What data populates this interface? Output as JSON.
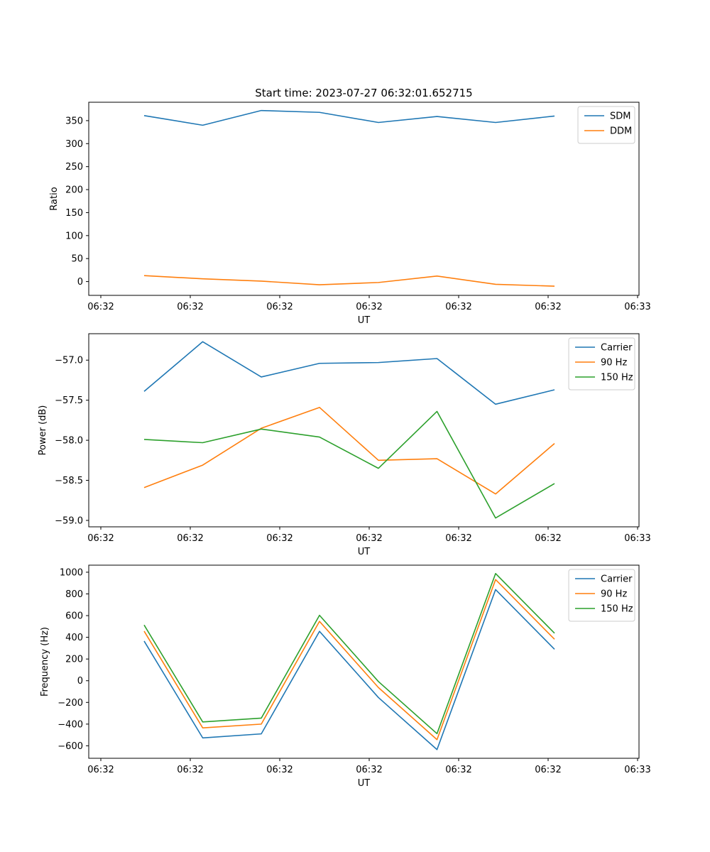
{
  "figure": {
    "title": "Start time: 2023-07-27 06:32:01.652715"
  },
  "chart_data": [
    {
      "type": "line",
      "title": "Start time: 2023-07-27 06:32:01.652715",
      "xlabel": "UT",
      "ylabel": "Ratio",
      "ylim": [
        -30,
        390
      ],
      "yticks": [
        0,
        50,
        100,
        150,
        200,
        250,
        300,
        350
      ],
      "x_tick_labels": [
        "06:32",
        "06:32",
        "06:32",
        "06:32",
        "06:32",
        "06:32",
        "06:33"
      ],
      "legend": "top-right",
      "series": [
        {
          "name": "SDM",
          "color": "#1f77b4",
          "values": [
            361,
            340,
            372,
            368,
            346,
            359,
            346,
            360
          ]
        },
        {
          "name": "DDM",
          "color": "#ff7f0e",
          "values": [
            13,
            6,
            1,
            -7,
            -2,
            12,
            -6,
            -10
          ]
        }
      ]
    },
    {
      "type": "line",
      "xlabel": "UT",
      "ylabel": "Power (dB)",
      "ylim": [
        -59.08,
        -56.67
      ],
      "yticks": [
        -57.0,
        -57.5,
        -58.0,
        -58.5,
        -59.0
      ],
      "ytick_labels": [
        "−57.0",
        "−57.5",
        "−58.0",
        "−58.5",
        "−59.0"
      ],
      "x_tick_labels": [
        "06:32",
        "06:32",
        "06:32",
        "06:32",
        "06:32",
        "06:32",
        "06:33"
      ],
      "legend": "top-right",
      "series": [
        {
          "name": "Carrier",
          "color": "#1f77b4",
          "values": [
            -57.39,
            -56.77,
            -57.21,
            -57.04,
            -57.03,
            -56.98,
            -57.55,
            -57.37
          ]
        },
        {
          "name": "90 Hz",
          "color": "#ff7f0e",
          "values": [
            -58.59,
            -58.31,
            -57.85,
            -57.59,
            -58.25,
            -58.23,
            -58.67,
            -58.04
          ]
        },
        {
          "name": "150 Hz",
          "color": "#2ca02c",
          "values": [
            -57.99,
            -58.03,
            -57.86,
            -57.96,
            -58.35,
            -57.64,
            -58.97,
            -58.54
          ]
        }
      ]
    },
    {
      "type": "line",
      "xlabel": "UT",
      "ylabel": "Frequency (Hz)",
      "ylim": [
        -715,
        1065
      ],
      "yticks": [
        -600,
        -400,
        -200,
        0,
        200,
        400,
        600,
        800,
        1000
      ],
      "ytick_labels": [
        "−600",
        "−400",
        "−200",
        "0",
        "200",
        "400",
        "600",
        "800",
        "1000"
      ],
      "x_tick_labels": [
        "06:32",
        "06:32",
        "06:32",
        "06:32",
        "06:32",
        "06:32",
        "06:33"
      ],
      "legend": "top-right",
      "series": [
        {
          "name": "Carrier",
          "color": "#1f77b4",
          "values": [
            365,
            -527,
            -490,
            455,
            -155,
            -635,
            840,
            290
          ]
        },
        {
          "name": "90 Hz",
          "color": "#ff7f0e",
          "values": [
            457,
            -435,
            -400,
            547,
            -63,
            -543,
            932,
            382
          ]
        },
        {
          "name": "150 Hz",
          "color": "#2ca02c",
          "values": [
            513,
            -380,
            -345,
            603,
            -8,
            -488,
            988,
            438
          ]
        }
      ]
    }
  ]
}
